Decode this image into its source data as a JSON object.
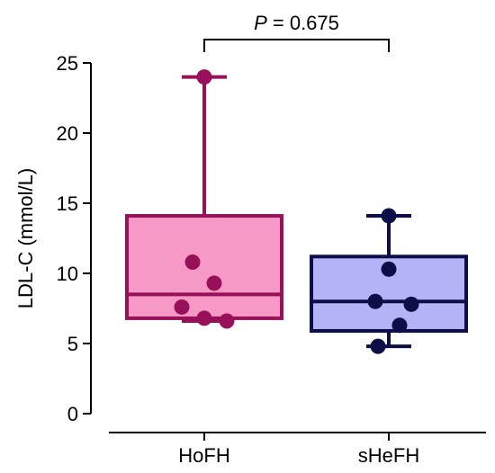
{
  "chart_data": {
    "type": "box",
    "ylabel": "LDL-C (mmol/L)",
    "ylim": [
      0,
      25
    ],
    "yticks": [
      0,
      5,
      10,
      15,
      20,
      25
    ],
    "categories": [
      "HoFH",
      "sHeFH"
    ],
    "groups": [
      {
        "name": "HoFH",
        "fill": "#f799c6",
        "stroke": "#99105a",
        "point_color": "#99105a",
        "min": 6.6,
        "q1": 6.8,
        "median": 8.5,
        "q3": 14.1,
        "max": 24.0,
        "points": [
          24.0,
          10.8,
          9.3,
          7.6,
          6.8,
          6.6
        ]
      },
      {
        "name": "sHeFH",
        "fill": "#b3b3f7",
        "stroke": "#0d0d47",
        "point_color": "#0d0d47",
        "min": 4.8,
        "q1": 5.9,
        "median": 8.0,
        "q3": 11.2,
        "max": 14.1,
        "points": [
          14.1,
          10.3,
          8.0,
          7.8,
          6.3,
          4.8
        ]
      }
    ],
    "annotation": {
      "p_symbol": "P",
      "p_text": " = 0.675"
    }
  }
}
